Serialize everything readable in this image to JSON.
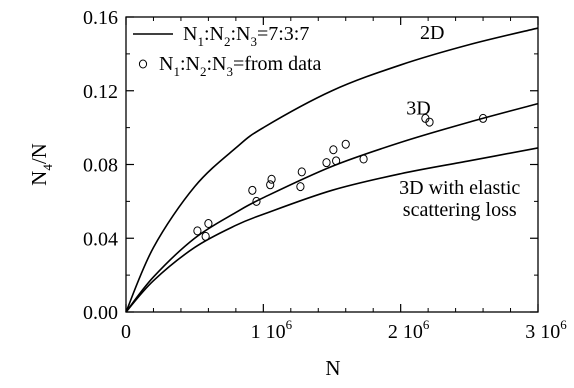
{
  "chart_data": {
    "type": "line",
    "title": "",
    "xlabel": "N",
    "ylabel": {
      "base": "N",
      "base_sub": "4",
      "rest": "/N"
    },
    "xlim": [
      0,
      3000000
    ],
    "ylim": [
      0,
      0.16
    ],
    "x_ticks": [
      {
        "value": 0,
        "base": "0",
        "exp": ""
      },
      {
        "value": 1000000,
        "base": "1 10",
        "exp": "6"
      },
      {
        "value": 2000000,
        "base": "2 10",
        "exp": "6"
      },
      {
        "value": 3000000,
        "base": "3 10",
        "exp": "6"
      }
    ],
    "y_ticks": [
      {
        "value": 0.0,
        "label": "0.00"
      },
      {
        "value": 0.04,
        "label": "0.04"
      },
      {
        "value": 0.08,
        "label": "0.08"
      },
      {
        "value": 0.12,
        "label": "0.12"
      },
      {
        "value": 0.16,
        "label": "0.16"
      }
    ],
    "grid": false,
    "legend": {
      "position": "top-left",
      "entries": [
        {
          "marker": "line",
          "parts": [
            {
              "t": "N",
              "s": ""
            },
            {
              "t": "",
              "s": "1"
            },
            {
              "t": ":N",
              "s": ""
            },
            {
              "t": "",
              "s": "2"
            },
            {
              "t": ":N",
              "s": ""
            },
            {
              "t": "",
              "s": "3"
            },
            {
              "t": "=7:3:7",
              "s": ""
            }
          ]
        },
        {
          "marker": "circle",
          "parts": [
            {
              "t": "N",
              "s": ""
            },
            {
              "t": "",
              "s": "1"
            },
            {
              "t": ":N",
              "s": ""
            },
            {
              "t": "",
              "s": "2"
            },
            {
              "t": ":N",
              "s": ""
            },
            {
              "t": "",
              "s": "3"
            },
            {
              "t": "=from data",
              "s": ""
            }
          ]
        }
      ]
    },
    "series": [
      {
        "name": "2D",
        "style": "line",
        "x": [
          0,
          200000,
          500000,
          800000,
          1000000,
          1500000,
          2000000,
          2500000,
          3000000
        ],
        "y": [
          0,
          0.035,
          0.068,
          0.089,
          0.1,
          0.12,
          0.134,
          0.145,
          0.154
        ]
      },
      {
        "name": "3D",
        "style": "line",
        "x": [
          0,
          200000,
          500000,
          800000,
          1000000,
          1500000,
          2000000,
          2500000,
          3000000
        ],
        "y": [
          0,
          0.019,
          0.04,
          0.054,
          0.062,
          0.079,
          0.092,
          0.103,
          0.113
        ]
      },
      {
        "name": "3D with elastic scattering loss",
        "style": "line",
        "x": [
          0,
          200000,
          500000,
          800000,
          1000000,
          1500000,
          2000000,
          2500000,
          3000000
        ],
        "y": [
          0,
          0.017,
          0.035,
          0.047,
          0.053,
          0.066,
          0.075,
          0.082,
          0.089
        ]
      },
      {
        "name": "from data",
        "style": "scatter",
        "x": [
          520000,
          580000,
          600000,
          920000,
          950000,
          1050000,
          1060000,
          1270000,
          1280000,
          1460000,
          1510000,
          1530000,
          1600000,
          1730000,
          2180000,
          2210000,
          2600000
        ],
        "y": [
          0.044,
          0.041,
          0.048,
          0.066,
          0.06,
          0.069,
          0.072,
          0.068,
          0.076,
          0.081,
          0.088,
          0.082,
          0.091,
          0.083,
          0.105,
          0.103,
          0.105
        ]
      }
    ],
    "annotations": [
      {
        "id": "label-2d",
        "lines": [
          "2D"
        ],
        "x": 2230000,
        "y": 0.148
      },
      {
        "id": "label-3d",
        "lines": [
          "3D"
        ],
        "x": 2130000,
        "y": 0.107
      },
      {
        "id": "label-3d-elastic",
        "lines": [
          "3D with elastic",
          "scattering loss"
        ],
        "x": 2430000,
        "y": 0.064
      }
    ]
  }
}
